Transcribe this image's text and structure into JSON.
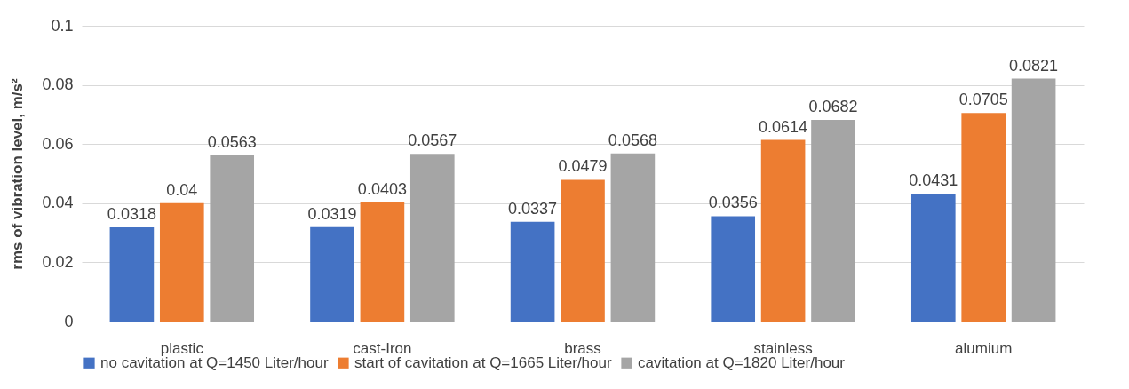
{
  "chart_data": {
    "type": "bar",
    "ylabel": "rms of vibration level, m/s²",
    "categories": [
      "plastic",
      "cast-Iron",
      "brass",
      "stainless",
      "alumium"
    ],
    "series": [
      {
        "name": "no cavitation at Q=1450 Liter/hour",
        "color": "#4472c4",
        "values": [
          0.0318,
          0.0319,
          0.0337,
          0.0356,
          0.0431
        ]
      },
      {
        "name": "start of cavitation at Q=1665 Liter/hour",
        "color": "#ed7d31",
        "values": [
          0.04,
          0.0403,
          0.0479,
          0.0614,
          0.0705
        ]
      },
      {
        "name": "cavitation at Q=1820 Liter/hour",
        "color": "#a5a5a5",
        "values": [
          0.0563,
          0.0567,
          0.0568,
          0.0682,
          0.0821
        ]
      }
    ],
    "ylim": [
      0,
      0.1
    ],
    "yticks": [
      0,
      0.02,
      0.04,
      0.06,
      0.08,
      0.1
    ],
    "grid": "y",
    "legend": "bottom",
    "data_labels": true
  }
}
